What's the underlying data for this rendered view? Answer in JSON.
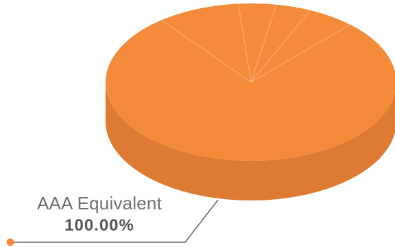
{
  "chart_data": {
    "type": "pie",
    "style": "3d",
    "slices": [
      {
        "label": "AAA Equivalent",
        "value": 100.0,
        "display_value": "100.00%"
      }
    ],
    "colors": {
      "top": "#F48B3B",
      "side": "#DE7B33",
      "dot": "#F48B3B",
      "leader": "#666666"
    }
  }
}
